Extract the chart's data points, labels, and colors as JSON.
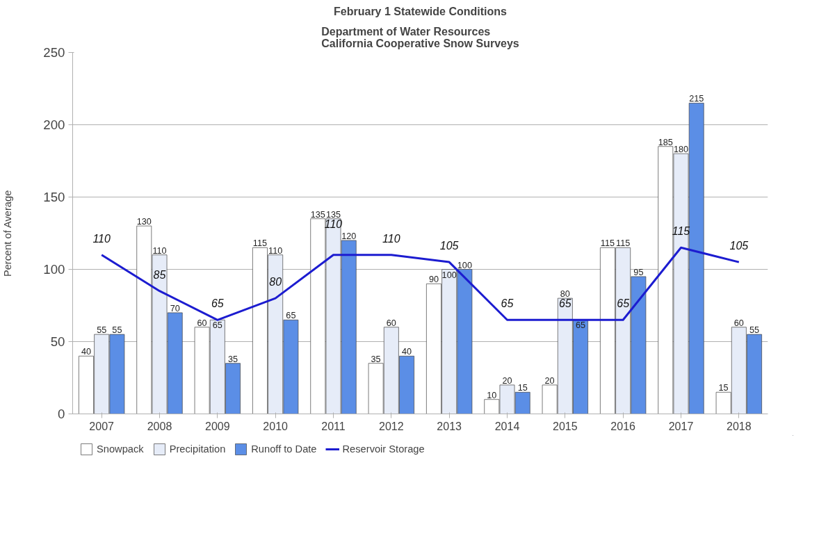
{
  "chart_data": {
    "type": "bar",
    "title": "February 1 Statewide Conditions",
    "subtitle": "Department of Water Resources\nCalifornia Cooperative Snow Surveys",
    "ylabel": "Percent of Average",
    "categories": [
      "2007",
      "2008",
      "2009",
      "2010",
      "2011",
      "2012",
      "2013",
      "2014",
      "2015",
      "2016",
      "2017",
      "2018"
    ],
    "series": [
      {
        "name": "Snowpack",
        "color": "#ffffff",
        "values": [
          40,
          130,
          60,
          115,
          135,
          35,
          90,
          10,
          20,
          115,
          185,
          15
        ]
      },
      {
        "name": "Precipitation",
        "color": "#e6ecf8",
        "values": [
          55,
          110,
          65,
          110,
          135,
          60,
          100,
          20,
          80,
          115,
          180,
          60
        ]
      },
      {
        "name": "Runoff to Date",
        "color": "#5b8ee6",
        "values": [
          55,
          70,
          35,
          65,
          120,
          40,
          100,
          15,
          65,
          95,
          215,
          55
        ]
      },
      {
        "name": "Reservoir Storage",
        "type": "line",
        "color": "#1c1cd0",
        "values": [
          110,
          85,
          65,
          80,
          110,
          110,
          105,
          65,
          65,
          65,
          115,
          105
        ]
      }
    ],
    "ylim": [
      0,
      250
    ],
    "yticks": [
      0,
      50,
      100,
      150,
      200,
      250
    ],
    "grid": "y",
    "legend": "bottom",
    "data_labels": true,
    "marker": "none",
    "line_style": "solid"
  }
}
